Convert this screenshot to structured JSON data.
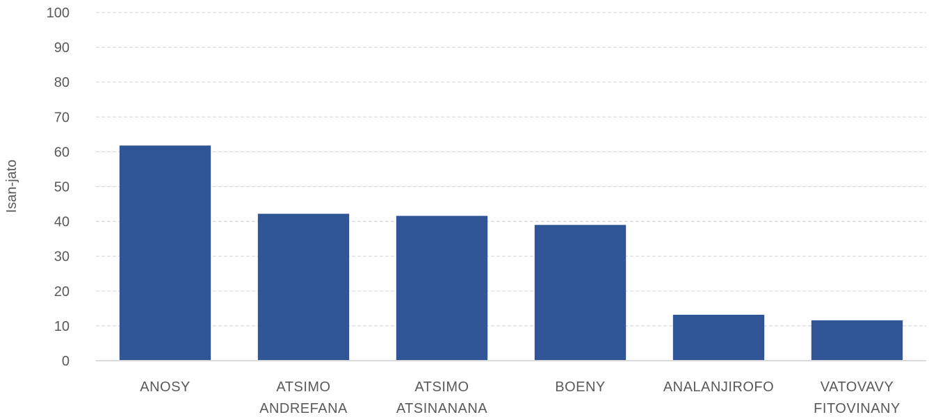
{
  "chart_data": {
    "type": "bar",
    "categories": [
      [
        "ANOSY"
      ],
      [
        "ATSIMO",
        "ANDREFANA"
      ],
      [
        "ATSIMO",
        "ATSINANANA"
      ],
      [
        "BOENY"
      ],
      [
        "ANALANJIROFO"
      ],
      [
        "VATOVAVY",
        "FITOVINANY"
      ]
    ],
    "values": [
      61.8,
      42.2,
      41.6,
      39.0,
      13.2,
      11.6
    ],
    "ylabel": "Isan-jato",
    "xlabel": "",
    "ylim": [
      0,
      100
    ],
    "yticks": [
      0,
      10,
      20,
      30,
      40,
      50,
      60,
      70,
      80,
      90,
      100
    ],
    "grid": true,
    "legend": "none",
    "colors": {
      "bar": "#2F5597",
      "grid": "#D9D9D9",
      "axis": "#D9D9D9",
      "text": "#595959"
    }
  }
}
